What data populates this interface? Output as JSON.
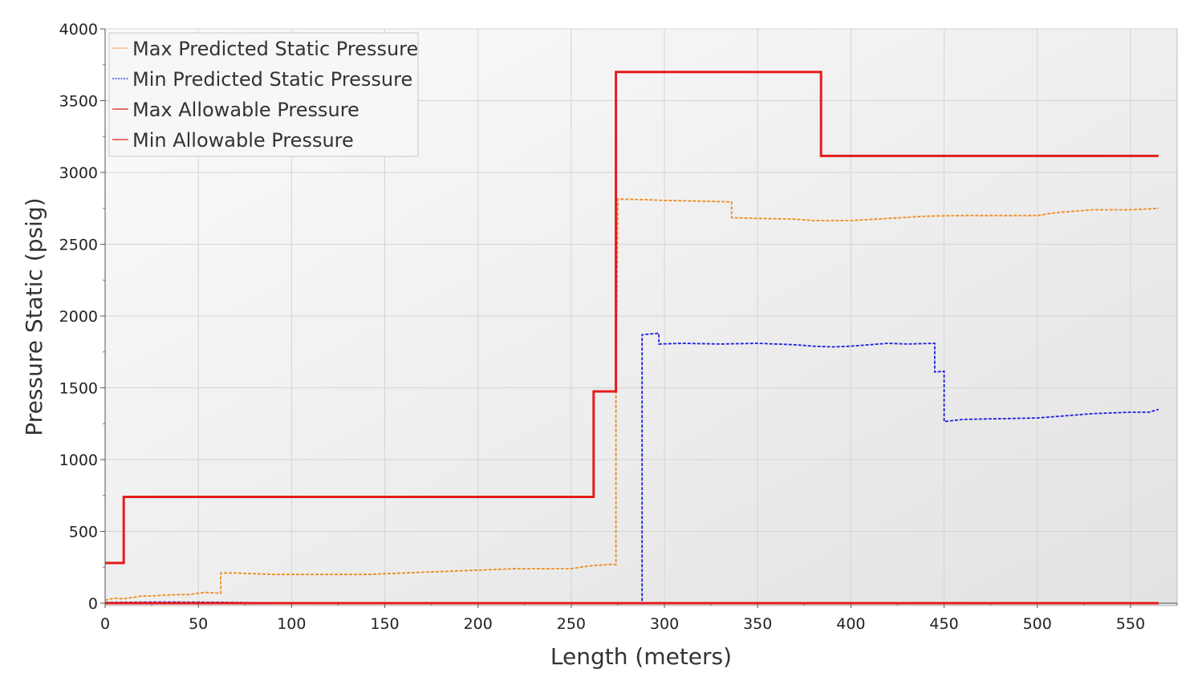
{
  "chart_data": {
    "type": "line",
    "xlabel": "Length (meters)",
    "ylabel": "Pressure Static (psig)",
    "xlim": [
      0,
      575
    ],
    "ylim": [
      0,
      4000
    ],
    "x_ticks": [
      "0",
      "50",
      "100",
      "150",
      "200",
      "250",
      "300",
      "350",
      "400",
      "450",
      "500",
      "550"
    ],
    "y_ticks": [
      "0",
      "500",
      "1000",
      "1500",
      "2000",
      "2500",
      "3000",
      "3500",
      "4000"
    ],
    "grid": true,
    "legend_position": "top-left",
    "series": [
      {
        "name": "Max Predicted Static Pressure",
        "color": "#f08a1c",
        "style": "dashed",
        "points": [
          [
            0,
            20
          ],
          [
            5,
            35
          ],
          [
            10,
            30
          ],
          [
            15,
            40
          ],
          [
            20,
            50
          ],
          [
            25,
            50
          ],
          [
            30,
            55
          ],
          [
            40,
            60
          ],
          [
            45,
            60
          ],
          [
            50,
            70
          ],
          [
            55,
            75
          ],
          [
            60,
            70
          ],
          [
            62,
            70
          ],
          [
            62,
            210
          ],
          [
            70,
            210
          ],
          [
            80,
            205
          ],
          [
            90,
            200
          ],
          [
            100,
            200
          ],
          [
            120,
            200
          ],
          [
            140,
            200
          ],
          [
            150,
            205
          ],
          [
            160,
            210
          ],
          [
            170,
            215
          ],
          [
            180,
            220
          ],
          [
            190,
            225
          ],
          [
            200,
            230
          ],
          [
            210,
            235
          ],
          [
            220,
            240
          ],
          [
            250,
            240
          ],
          [
            260,
            260
          ],
          [
            270,
            270
          ],
          [
            274,
            270
          ],
          [
            274,
            1500
          ],
          [
            275,
            2815
          ],
          [
            290,
            2810
          ],
          [
            300,
            2805
          ],
          [
            320,
            2800
          ],
          [
            336,
            2795
          ],
          [
            336,
            2685
          ],
          [
            350,
            2680
          ],
          [
            370,
            2675
          ],
          [
            380,
            2665
          ],
          [
            400,
            2665
          ],
          [
            420,
            2680
          ],
          [
            440,
            2695
          ],
          [
            460,
            2700
          ],
          [
            500,
            2700
          ],
          [
            510,
            2720
          ],
          [
            530,
            2740
          ],
          [
            550,
            2740
          ],
          [
            565,
            2750
          ]
        ]
      },
      {
        "name": "Min Predicted Static Pressure",
        "color": "#1f1fe0",
        "style": "dashed",
        "points": [
          [
            0,
            5
          ],
          [
            30,
            8
          ],
          [
            60,
            6
          ],
          [
            80,
            4
          ],
          [
            100,
            0
          ],
          [
            288,
            0
          ],
          [
            288,
            1870
          ],
          [
            297,
            1880
          ],
          [
            297,
            1805
          ],
          [
            310,
            1810
          ],
          [
            330,
            1805
          ],
          [
            350,
            1810
          ],
          [
            370,
            1800
          ],
          [
            380,
            1790
          ],
          [
            390,
            1785
          ],
          [
            400,
            1790
          ],
          [
            410,
            1800
          ],
          [
            420,
            1810
          ],
          [
            430,
            1805
          ],
          [
            445,
            1810
          ],
          [
            445,
            1610
          ],
          [
            450,
            1615
          ],
          [
            450,
            1265
          ],
          [
            460,
            1280
          ],
          [
            480,
            1285
          ],
          [
            500,
            1290
          ],
          [
            510,
            1300
          ],
          [
            530,
            1320
          ],
          [
            550,
            1330
          ],
          [
            560,
            1330
          ],
          [
            565,
            1350
          ]
        ]
      },
      {
        "name": "Max Allowable Pressure",
        "color": "#e41c1c",
        "style": "solid",
        "points": [
          [
            0,
            280
          ],
          [
            10,
            280
          ],
          [
            10,
            740
          ],
          [
            262,
            740
          ],
          [
            262,
            1475
          ],
          [
            274,
            1475
          ],
          [
            274,
            3700
          ],
          [
            384,
            3700
          ],
          [
            384,
            3115
          ],
          [
            565,
            3115
          ]
        ]
      },
      {
        "name": "Min Allowable Pressure",
        "color": "#e41c1c",
        "style": "solid",
        "points": [
          [
            0,
            0
          ],
          [
            565,
            0
          ]
        ]
      }
    ]
  },
  "legend": {
    "items": [
      {
        "label": "Max Predicted Static Pressure",
        "color": "#f08a1c",
        "style": "dashed"
      },
      {
        "label": "Min Predicted Static Pressure",
        "color": "#1f1fe0",
        "style": "dashed"
      },
      {
        "label": "Max Allowable Pressure",
        "color": "#e41c1c",
        "style": "solid"
      },
      {
        "label": "Min Allowable Pressure",
        "color": "#e41c1c",
        "style": "solid"
      }
    ]
  }
}
